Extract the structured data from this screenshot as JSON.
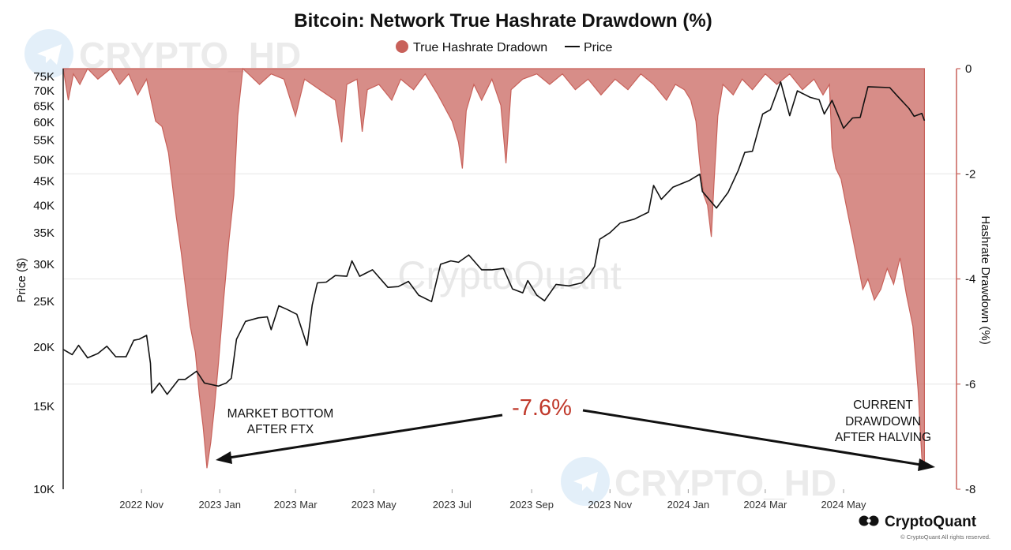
{
  "chart_data": {
    "type": "area",
    "title": "Bitcoin: Network True Hashrate Drawdown (%)",
    "legend": {
      "position": "top-center",
      "items": [
        {
          "label": "True Hashrate Dradown",
          "symbol": "filled-circle",
          "color": "#c8615a"
        },
        {
          "label": "Price",
          "symbol": "line",
          "color": "#111111"
        }
      ]
    },
    "xaxis": {
      "type": "date",
      "range": [
        "2022-09-01",
        "2024-07-28"
      ],
      "ticks": [
        {
          "date": "2022-11-01",
          "label": "2022 Nov"
        },
        {
          "date": "2023-01-01",
          "label": "2023 Jan"
        },
        {
          "date": "2023-03-01",
          "label": "2023 Mar"
        },
        {
          "date": "2023-05-01",
          "label": "2023 May"
        },
        {
          "date": "2023-07-01",
          "label": "2023 Jul"
        },
        {
          "date": "2023-09-01",
          "label": "2023 Sep"
        },
        {
          "date": "2023-11-01",
          "label": "2023 Nov"
        },
        {
          "date": "2024-01-01",
          "label": "2024 Jan"
        },
        {
          "date": "2024-03-01",
          "label": "2024 Mar"
        },
        {
          "date": "2024-05-01",
          "label": "2024 May"
        }
      ]
    },
    "yaxis_left": {
      "label": "Price ($)",
      "scale": "log",
      "range": [
        10000,
        78000
      ],
      "ticks": [
        {
          "value": 10000,
          "label": "10K"
        },
        {
          "value": 15000,
          "label": "15K"
        },
        {
          "value": 20000,
          "label": "20K"
        },
        {
          "value": 25000,
          "label": "25K"
        },
        {
          "value": 30000,
          "label": "30K"
        },
        {
          "value": 35000,
          "label": "35K"
        },
        {
          "value": 40000,
          "label": "40K"
        },
        {
          "value": 45000,
          "label": "45K"
        },
        {
          "value": 50000,
          "label": "50K"
        },
        {
          "value": 55000,
          "label": "55K"
        },
        {
          "value": 60000,
          "label": "60K"
        },
        {
          "value": 65000,
          "label": "65K"
        },
        {
          "value": 70000,
          "label": "70K"
        },
        {
          "value": 75000,
          "label": "75K"
        }
      ]
    },
    "yaxis_right": {
      "label": "Hashrate Drawdown (%)",
      "scale": "linear",
      "range": [
        -8,
        0
      ],
      "ticks": [
        {
          "value": 0,
          "label": "0"
        },
        {
          "value": -2,
          "label": "-2"
        },
        {
          "value": -4,
          "label": "-4"
        },
        {
          "value": -6,
          "label": "-6"
        },
        {
          "value": -8,
          "label": "-8"
        }
      ]
    },
    "gridlines": "horizontal",
    "series": [
      {
        "name": "Price",
        "type": "line",
        "axis": "left",
        "color": "#111111",
        "points": [
          [
            "2022-09-01",
            19800
          ],
          [
            "2022-09-08",
            19300
          ],
          [
            "2022-09-13",
            20200
          ],
          [
            "2022-09-20",
            19000
          ],
          [
            "2022-09-28",
            19400
          ],
          [
            "2022-10-05",
            20100
          ],
          [
            "2022-10-12",
            19100
          ],
          [
            "2022-10-20",
            19100
          ],
          [
            "2022-10-26",
            20700
          ],
          [
            "2022-10-30",
            20800
          ],
          [
            "2022-11-05",
            21200
          ],
          [
            "2022-11-08",
            18500
          ],
          [
            "2022-11-09",
            16000
          ],
          [
            "2022-11-15",
            16800
          ],
          [
            "2022-11-21",
            15900
          ],
          [
            "2022-11-30",
            17100
          ],
          [
            "2022-12-05",
            17100
          ],
          [
            "2022-12-14",
            17800
          ],
          [
            "2022-12-20",
            16800
          ],
          [
            "2022-12-31",
            16550
          ],
          [
            "2023-01-06",
            16800
          ],
          [
            "2023-01-10",
            17200
          ],
          [
            "2023-01-14",
            20800
          ],
          [
            "2023-01-21",
            22700
          ],
          [
            "2023-01-31",
            23100
          ],
          [
            "2023-02-07",
            23200
          ],
          [
            "2023-02-10",
            21800
          ],
          [
            "2023-02-16",
            24500
          ],
          [
            "2023-02-22",
            24100
          ],
          [
            "2023-03-02",
            23500
          ],
          [
            "2023-03-10",
            20200
          ],
          [
            "2023-03-14",
            24600
          ],
          [
            "2023-03-18",
            27400
          ],
          [
            "2023-03-25",
            27500
          ],
          [
            "2023-04-01",
            28400
          ],
          [
            "2023-04-10",
            28300
          ],
          [
            "2023-04-14",
            30500
          ],
          [
            "2023-04-20",
            28300
          ],
          [
            "2023-04-30",
            29200
          ],
          [
            "2023-05-12",
            26800
          ],
          [
            "2023-05-20",
            26900
          ],
          [
            "2023-05-28",
            27600
          ],
          [
            "2023-06-05",
            25800
          ],
          [
            "2023-06-15",
            25000
          ],
          [
            "2023-06-22",
            30000
          ],
          [
            "2023-06-30",
            30500
          ],
          [
            "2023-07-06",
            30300
          ],
          [
            "2023-07-14",
            31400
          ],
          [
            "2023-07-24",
            29200
          ],
          [
            "2023-08-01",
            29200
          ],
          [
            "2023-08-10",
            29400
          ],
          [
            "2023-08-17",
            26600
          ],
          [
            "2023-08-25",
            26100
          ],
          [
            "2023-08-29",
            27700
          ],
          [
            "2023-09-05",
            25800
          ],
          [
            "2023-09-11",
            25100
          ],
          [
            "2023-09-20",
            27200
          ],
          [
            "2023-09-30",
            27000
          ],
          [
            "2023-10-10",
            27400
          ],
          [
            "2023-10-16",
            28500
          ],
          [
            "2023-10-20",
            29700
          ],
          [
            "2023-10-24",
            33900
          ],
          [
            "2023-11-01",
            35000
          ],
          [
            "2023-11-09",
            36700
          ],
          [
            "2023-11-20",
            37400
          ],
          [
            "2023-12-01",
            38700
          ],
          [
            "2023-12-05",
            44100
          ],
          [
            "2023-12-11",
            41200
          ],
          [
            "2023-12-20",
            43700
          ],
          [
            "2024-01-02",
            45200
          ],
          [
            "2024-01-10",
            46600
          ],
          [
            "2024-01-12",
            42800
          ],
          [
            "2024-01-23",
            39500
          ],
          [
            "2024-02-01",
            42600
          ],
          [
            "2024-02-09",
            47500
          ],
          [
            "2024-02-14",
            51800
          ],
          [
            "2024-02-20",
            52100
          ],
          [
            "2024-02-28",
            62500
          ],
          [
            "2024-03-05",
            63800
          ],
          [
            "2024-03-13",
            73100
          ],
          [
            "2024-03-20",
            62000
          ],
          [
            "2024-03-26",
            70000
          ],
          [
            "2024-04-05",
            67800
          ],
          [
            "2024-04-12",
            67000
          ],
          [
            "2024-04-16",
            62500
          ],
          [
            "2024-04-22",
            66800
          ],
          [
            "2024-05-01",
            58300
          ],
          [
            "2024-05-08",
            61300
          ],
          [
            "2024-05-14",
            61500
          ],
          [
            "2024-05-20",
            71400
          ],
          [
            "2024-06-06",
            71100
          ],
          [
            "2024-06-12",
            68200
          ],
          [
            "2024-06-21",
            64200
          ],
          [
            "2024-06-25",
            61800
          ],
          [
            "2024-07-01",
            62700
          ],
          [
            "2024-07-03",
            60500
          ]
        ]
      },
      {
        "name": "True Hashrate Dradown",
        "type": "area",
        "axis": "right",
        "color": "#c8615a",
        "points": [
          [
            "2022-09-01",
            0
          ],
          [
            "2022-09-05",
            -0.6
          ],
          [
            "2022-09-09",
            -0.1
          ],
          [
            "2022-09-14",
            -0.3
          ],
          [
            "2022-09-20",
            0
          ],
          [
            "2022-09-28",
            -0.2
          ],
          [
            "2022-10-08",
            0
          ],
          [
            "2022-10-15",
            -0.3
          ],
          [
            "2022-10-22",
            -0.1
          ],
          [
            "2022-10-29",
            -0.5
          ],
          [
            "2022-11-05",
            -0.2
          ],
          [
            "2022-11-12",
            -1.0
          ],
          [
            "2022-11-17",
            -1.1
          ],
          [
            "2022-11-22",
            -1.6
          ],
          [
            "2022-11-28",
            -2.8
          ],
          [
            "2022-12-02",
            -3.5
          ],
          [
            "2022-12-06",
            -4.3
          ],
          [
            "2022-12-09",
            -4.9
          ],
          [
            "2022-12-13",
            -5.4
          ],
          [
            "2022-12-16",
            -6.2
          ],
          [
            "2022-12-19",
            -6.8
          ],
          [
            "2022-12-22",
            -7.6
          ],
          [
            "2022-12-25",
            -7.1
          ],
          [
            "2022-12-28",
            -6.4
          ],
          [
            "2022-12-31",
            -5.6
          ],
          [
            "2023-01-04",
            -4.4
          ],
          [
            "2023-01-08",
            -3.3
          ],
          [
            "2023-01-12",
            -2.4
          ],
          [
            "2023-01-15",
            -0.9
          ],
          [
            "2023-01-19",
            0
          ],
          [
            "2023-02-01",
            -0.3
          ],
          [
            "2023-02-10",
            -0.1
          ],
          [
            "2023-02-20",
            -0.2
          ],
          [
            "2023-03-01",
            -0.9
          ],
          [
            "2023-03-08",
            -0.2
          ],
          [
            "2023-03-20",
            -0.4
          ],
          [
            "2023-04-01",
            -0.6
          ],
          [
            "2023-04-06",
            -1.4
          ],
          [
            "2023-04-10",
            -0.3
          ],
          [
            "2023-04-18",
            -0.2
          ],
          [
            "2023-04-22",
            -1.2
          ],
          [
            "2023-04-26",
            -0.4
          ],
          [
            "2023-05-05",
            -0.3
          ],
          [
            "2023-05-15",
            -0.6
          ],
          [
            "2023-05-22",
            -0.2
          ],
          [
            "2023-06-01",
            -0.4
          ],
          [
            "2023-06-10",
            -0.1
          ],
          [
            "2023-06-20",
            -0.5
          ],
          [
            "2023-07-01",
            -1.0
          ],
          [
            "2023-07-06",
            -1.4
          ],
          [
            "2023-07-09",
            -1.9
          ],
          [
            "2023-07-12",
            -0.8
          ],
          [
            "2023-07-18",
            -0.3
          ],
          [
            "2023-07-24",
            -0.6
          ],
          [
            "2023-08-01",
            -0.2
          ],
          [
            "2023-08-08",
            -0.7
          ],
          [
            "2023-08-12",
            -1.8
          ],
          [
            "2023-08-16",
            -0.4
          ],
          [
            "2023-08-25",
            -0.2
          ],
          [
            "2023-09-05",
            -0.1
          ],
          [
            "2023-09-15",
            -0.3
          ],
          [
            "2023-09-25",
            -0.1
          ],
          [
            "2023-10-05",
            -0.4
          ],
          [
            "2023-10-15",
            -0.2
          ],
          [
            "2023-10-25",
            -0.5
          ],
          [
            "2023-11-05",
            -0.2
          ],
          [
            "2023-11-15",
            -0.4
          ],
          [
            "2023-11-25",
            -0.1
          ],
          [
            "2023-12-05",
            -0.3
          ],
          [
            "2023-12-15",
            -0.6
          ],
          [
            "2023-12-22",
            -0.3
          ],
          [
            "2023-12-29",
            -0.4
          ],
          [
            "2024-01-03",
            -0.6
          ],
          [
            "2024-01-07",
            -1.0
          ],
          [
            "2024-01-10",
            -1.8
          ],
          [
            "2024-01-13",
            -2.4
          ],
          [
            "2024-01-16",
            -2.6
          ],
          [
            "2024-01-19",
            -3.2
          ],
          [
            "2024-01-21",
            -2.2
          ],
          [
            "2024-01-24",
            -0.9
          ],
          [
            "2024-01-28",
            -0.3
          ],
          [
            "2024-02-05",
            -0.5
          ],
          [
            "2024-02-12",
            -0.2
          ],
          [
            "2024-02-20",
            -0.4
          ],
          [
            "2024-03-01",
            -0.1
          ],
          [
            "2024-03-10",
            -0.3
          ],
          [
            "2024-03-20",
            -0.1
          ],
          [
            "2024-03-30",
            -0.4
          ],
          [
            "2024-04-08",
            -0.2
          ],
          [
            "2024-04-15",
            -0.5
          ],
          [
            "2024-04-20",
            -0.3
          ],
          [
            "2024-04-22",
            -1.5
          ],
          [
            "2024-04-25",
            -1.9
          ],
          [
            "2024-04-29",
            -2.1
          ],
          [
            "2024-05-03",
            -2.6
          ],
          [
            "2024-05-08",
            -3.2
          ],
          [
            "2024-05-12",
            -3.7
          ],
          [
            "2024-05-16",
            -4.2
          ],
          [
            "2024-05-20",
            -4.0
          ],
          [
            "2024-05-25",
            -4.4
          ],
          [
            "2024-05-30",
            -4.2
          ],
          [
            "2024-06-04",
            -3.8
          ],
          [
            "2024-06-09",
            -4.1
          ],
          [
            "2024-06-14",
            -3.6
          ],
          [
            "2024-06-19",
            -4.3
          ],
          [
            "2024-06-24",
            -4.9
          ],
          [
            "2024-06-28",
            -6.1
          ],
          [
            "2024-07-01",
            -7.4
          ],
          [
            "2024-07-03",
            -7.6
          ]
        ]
      }
    ],
    "annotations": [
      {
        "id": "drawdown-value",
        "text": "-7.6%",
        "color": "#c0392b"
      },
      {
        "id": "market-bottom",
        "lines": [
          "MARKET BOTTOM",
          "AFTER FTX"
        ]
      },
      {
        "id": "current-drawdown",
        "lines": [
          "CURRENT",
          "DRAWDOWN",
          "AFTER HALVING"
        ]
      }
    ],
    "watermarks": [
      "CRYPTO_HD",
      "CryptoQuant"
    ]
  },
  "branding": {
    "logo_text": "CryptoQuant",
    "copyright": "© CryptoQuant All rights reserved."
  }
}
